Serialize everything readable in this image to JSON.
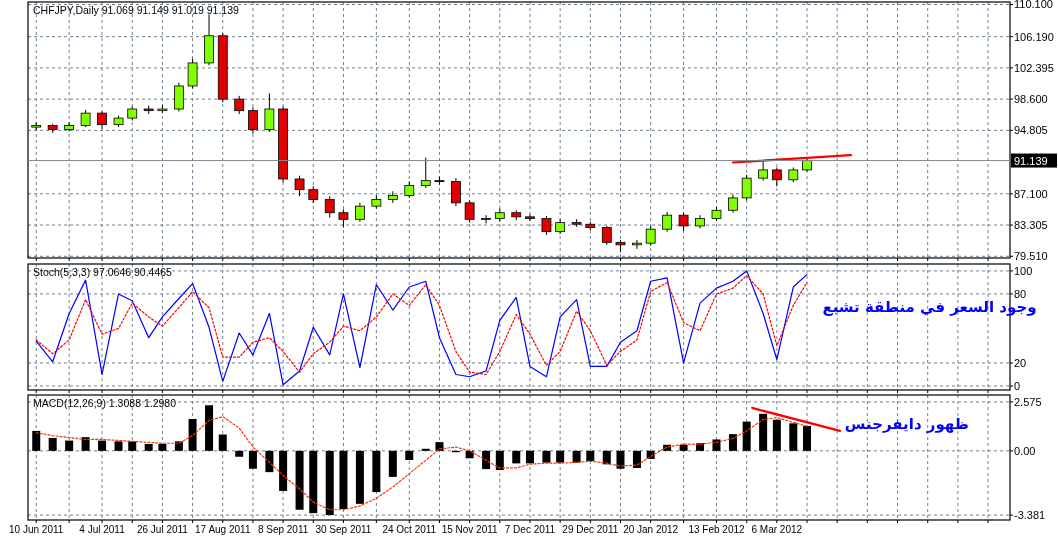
{
  "chart_data": [
    {
      "type": "candlestick",
      "title": "CHFJPY,Daily  91.069 91.149 91.019 91.139",
      "x": [
        "2011-06-10",
        "2011-06-16",
        "2011-06-22",
        "2011-06-28",
        "2011-07-04",
        "2011-07-10",
        "2011-07-15",
        "2011-07-21",
        "2011-07-26",
        "2011-08-01",
        "2011-08-06",
        "2011-08-12",
        "2011-08-17",
        "2011-08-23",
        "2011-08-28",
        "2011-09-03",
        "2011-09-08",
        "2011-09-14",
        "2011-09-19",
        "2011-09-25",
        "2011-09-30",
        "2011-10-06",
        "2011-10-12",
        "2011-10-18",
        "2011-10-24",
        "2011-10-30",
        "2011-11-04",
        "2011-11-10",
        "2011-11-15",
        "2011-11-21",
        "2011-11-26",
        "2011-12-02",
        "2011-12-07",
        "2011-12-13",
        "2011-12-18",
        "2011-12-24",
        "2011-12-29",
        "2012-01-04",
        "2012-01-09",
        "2012-01-15",
        "2012-01-20",
        "2012-01-26",
        "2012-02-01",
        "2012-02-07",
        "2012-02-13",
        "2012-02-19",
        "2012-02-24",
        "2012-03-01",
        "2012-03-06",
        "2012-03-12",
        "2012-03-17"
      ],
      "ohlc": [
        [
          95.2,
          95.8,
          94.8,
          95.4
        ],
        [
          95.4,
          95.6,
          94.5,
          94.9
        ],
        [
          94.9,
          95.8,
          94.7,
          95.4
        ],
        [
          95.4,
          97.3,
          95.2,
          96.9
        ],
        [
          96.9,
          97.1,
          95.0,
          95.5
        ],
        [
          95.5,
          96.6,
          95.2,
          96.3
        ],
        [
          96.3,
          97.7,
          96.0,
          97.4
        ],
        [
          97.4,
          97.8,
          96.8,
          97.2
        ],
        [
          97.2,
          97.9,
          96.9,
          97.4
        ],
        [
          97.4,
          100.6,
          97.1,
          100.2
        ],
        [
          100.2,
          103.5,
          99.9,
          103.0
        ],
        [
          103.0,
          108.9,
          102.7,
          106.3
        ],
        [
          106.3,
          106.6,
          98.2,
          98.6
        ],
        [
          98.6,
          99.0,
          96.8,
          97.2
        ],
        [
          97.2,
          97.6,
          94.4,
          94.9
        ],
        [
          94.9,
          99.3,
          94.6,
          97.4
        ],
        [
          97.4,
          97.7,
          88.5,
          88.9
        ],
        [
          88.9,
          89.3,
          86.8,
          87.6
        ],
        [
          87.6,
          88.0,
          86.0,
          86.4
        ],
        [
          86.4,
          86.8,
          84.2,
          84.8
        ],
        [
          84.8,
          85.2,
          83.0,
          84.0
        ],
        [
          84.0,
          86.0,
          83.7,
          85.6
        ],
        [
          85.6,
          86.9,
          85.3,
          86.4
        ],
        [
          86.4,
          87.4,
          86.0,
          86.9
        ],
        [
          86.9,
          88.6,
          86.6,
          88.1
        ],
        [
          88.1,
          91.5,
          87.8,
          88.7
        ],
        [
          88.7,
          89.2,
          88.2,
          88.6
        ],
        [
          88.6,
          89.0,
          85.6,
          86.0
        ],
        [
          86.0,
          86.3,
          83.6,
          84.0
        ],
        [
          84.0,
          84.5,
          83.5,
          84.1
        ],
        [
          84.1,
          85.3,
          83.7,
          84.8
        ],
        [
          84.8,
          85.1,
          83.9,
          84.3
        ],
        [
          84.3,
          84.6,
          83.8,
          84.1
        ],
        [
          84.1,
          84.4,
          82.1,
          82.5
        ],
        [
          82.5,
          84.0,
          82.2,
          83.6
        ],
        [
          83.6,
          84.0,
          83.1,
          83.4
        ],
        [
          83.4,
          83.7,
          82.7,
          83.0
        ],
        [
          83.0,
          83.2,
          80.9,
          81.2
        ],
        [
          81.2,
          81.5,
          80.0,
          80.9
        ],
        [
          80.9,
          81.5,
          80.4,
          81.1
        ],
        [
          81.1,
          83.2,
          80.8,
          82.8
        ],
        [
          82.8,
          84.9,
          82.5,
          84.5
        ],
        [
          84.5,
          84.8,
          82.6,
          83.2
        ],
        [
          83.2,
          84.5,
          82.9,
          84.1
        ],
        [
          84.1,
          85.5,
          83.8,
          85.1
        ],
        [
          85.1,
          87.0,
          84.8,
          86.6
        ],
        [
          86.6,
          89.4,
          86.3,
          89.0
        ],
        [
          89.0,
          91.1,
          88.7,
          90.0
        ],
        [
          90.0,
          90.3,
          88.0,
          88.8
        ],
        [
          88.8,
          90.3,
          88.5,
          90.0
        ],
        [
          90.0,
          91.3,
          89.8,
          91.139
        ]
      ],
      "colors": [
        "#80ff00",
        "#e00000",
        "#80ff00",
        "#80ff00",
        "#e00000",
        "#80ff00",
        "#80ff00",
        "#e00000",
        "#80ff00",
        "#80ff00",
        "#80ff00",
        "#80ff00",
        "#e00000",
        "#e00000",
        "#e00000",
        "#80ff00",
        "#e00000",
        "#e00000",
        "#e00000",
        "#e00000",
        "#e00000",
        "#80ff00",
        "#80ff00",
        "#80ff00",
        "#80ff00",
        "#80ff00",
        "#e00000",
        "#e00000",
        "#e00000",
        "#80ff00",
        "#80ff00",
        "#e00000",
        "#e00000",
        "#e00000",
        "#80ff00",
        "#e00000",
        "#e00000",
        "#e00000",
        "#e00000",
        "#80ff00",
        "#80ff00",
        "#80ff00",
        "#e00000",
        "#80ff00",
        "#80ff00",
        "#80ff00",
        "#80ff00",
        "#80ff00",
        "#e00000",
        "#80ff00",
        "#80ff00"
      ],
      "series": [
        {
          "type": "line",
          "x": [
            "2012-02-19",
            "2012-04-02"
          ],
          "values": [
            90.9,
            91.8
          ],
          "color": "#ff0000"
        }
      ],
      "ref_lines": [
        {
          "axis": "y",
          "value": 91.139,
          "label": "91.139",
          "color": "#808890"
        }
      ],
      "xlim": [
        "2011-06-07",
        "2012-05-30"
      ],
      "ylim": [
        79.3,
        110.4
      ],
      "xticks": [
        {
          "value": "2011-06-10",
          "label": null
        },
        {
          "value": "2011-06-22",
          "label": null
        },
        {
          "value": "2011-07-04",
          "label": null
        },
        {
          "value": "2011-07-15",
          "label": null
        },
        {
          "value": "2011-07-26",
          "label": null
        },
        {
          "value": "2011-08-06",
          "label": null
        },
        {
          "value": "2011-08-17",
          "label": null
        },
        {
          "value": "2011-08-28",
          "label": null
        },
        {
          "value": "2011-09-08",
          "label": null
        },
        {
          "value": "2011-09-19",
          "label": null
        },
        {
          "value": "2011-09-30",
          "label": null
        },
        {
          "value": "2011-10-12",
          "label": null
        },
        {
          "value": "2011-10-24",
          "label": null
        },
        {
          "value": "2011-11-04",
          "label": null
        },
        {
          "value": "2011-11-15",
          "label": null
        },
        {
          "value": "2011-11-26",
          "label": null
        },
        {
          "value": "2011-12-07",
          "label": null
        },
        {
          "value": "2011-12-18",
          "label": null
        },
        {
          "value": "2011-12-29",
          "label": null
        },
        {
          "value": "2012-01-09",
          "label": null
        },
        {
          "value": "2012-01-20",
          "label": null
        },
        {
          "value": "2012-02-01",
          "label": null
        },
        {
          "value": "2012-02-13",
          "label": null
        },
        {
          "value": "2012-02-24",
          "label": null
        },
        {
          "value": "2012-03-06",
          "label": null
        },
        {
          "value": "2012-03-17",
          "label": null
        },
        {
          "value": "2012-03-28",
          "label": null
        },
        {
          "value": "2012-04-08",
          "label": null
        },
        {
          "value": "2012-04-19",
          "label": null
        },
        {
          "value": "2012-04-30",
          "label": null
        },
        {
          "value": "2012-05-11",
          "label": null
        },
        {
          "value": "2012-05-22",
          "label": null
        }
      ],
      "yticks": [
        {
          "value": 110.1,
          "label": "110.100"
        },
        {
          "value": 106.19,
          "label": "106.190"
        },
        {
          "value": 102.395,
          "label": "102.395"
        },
        {
          "value": 98.6,
          "label": "98.600"
        },
        {
          "value": 94.805,
          "label": "94.805"
        },
        {
          "value": 87.1,
          "label": "87.100"
        },
        {
          "value": 83.305,
          "label": "83.305"
        },
        {
          "value": 79.51,
          "label": "79.510"
        }
      ],
      "grid": true,
      "tick_labels": "y"
    },
    {
      "type": "line",
      "title": "Stoch(5,3,3) 97.0646 90.4465",
      "x": [
        "2011-06-10",
        "2011-06-16",
        "2011-06-22",
        "2011-06-28",
        "2011-07-04",
        "2011-07-10",
        "2011-07-15",
        "2011-07-21",
        "2011-07-26",
        "2011-08-01",
        "2011-08-06",
        "2011-08-12",
        "2011-08-17",
        "2011-08-23",
        "2011-08-28",
        "2011-09-03",
        "2011-09-08",
        "2011-09-14",
        "2011-09-19",
        "2011-09-25",
        "2011-09-30",
        "2011-10-06",
        "2011-10-12",
        "2011-10-18",
        "2011-10-24",
        "2011-10-30",
        "2011-11-04",
        "2011-11-10",
        "2011-11-15",
        "2011-11-21",
        "2011-11-26",
        "2011-12-02",
        "2011-12-07",
        "2011-12-13",
        "2011-12-18",
        "2011-12-24",
        "2011-12-29",
        "2012-01-04",
        "2012-01-09",
        "2012-01-15",
        "2012-01-20",
        "2012-01-26",
        "2012-02-01",
        "2012-02-07",
        "2012-02-13",
        "2012-02-19",
        "2012-02-24",
        "2012-03-01",
        "2012-03-06",
        "2012-03-12",
        "2012-03-17"
      ],
      "series": [
        {
          "color": "#0000ff",
          "values": [
            39,
            21,
            63,
            92,
            10,
            80,
            74,
            42,
            60,
            76,
            89,
            51,
            4,
            46,
            27,
            63,
            1,
            13,
            51,
            27,
            80,
            16,
            88,
            66,
            86,
            91,
            42,
            10,
            8,
            13,
            57,
            77,
            17,
            8,
            60,
            75,
            17,
            17,
            38,
            48,
            91,
            94,
            20,
            72,
            85,
            91,
            100,
            63,
            23,
            86,
            97
          ]
        },
        {
          "color": "#ff0000",
          "line_style": "dotted",
          "values": [
            40,
            28,
            40,
            75,
            45,
            50,
            72,
            60,
            52,
            68,
            82,
            68,
            25,
            25,
            38,
            42,
            30,
            12,
            28,
            38,
            52,
            48,
            60,
            80,
            70,
            88,
            70,
            30,
            12,
            10,
            30,
            62,
            45,
            18,
            30,
            65,
            48,
            18,
            30,
            40,
            82,
            90,
            55,
            48,
            80,
            85,
            96,
            80,
            35,
            70,
            90
          ]
        }
      ],
      "annotations": [
        "وجود السعر في منطقة تشبع"
      ],
      "xlim": [
        "2011-06-07",
        "2012-05-30"
      ],
      "ylim": [
        -3.5,
        106
      ],
      "xticks": [
        {
          "value": "2011-06-10",
          "label": null
        },
        {
          "value": "2011-06-22",
          "label": null
        },
        {
          "value": "2011-07-04",
          "label": null
        },
        {
          "value": "2011-07-15",
          "label": null
        },
        {
          "value": "2011-07-26",
          "label": null
        },
        {
          "value": "2011-08-06",
          "label": null
        },
        {
          "value": "2011-08-17",
          "label": null
        },
        {
          "value": "2011-08-28",
          "label": null
        },
        {
          "value": "2011-09-08",
          "label": null
        },
        {
          "value": "2011-09-19",
          "label": null
        },
        {
          "value": "2011-09-30",
          "label": null
        },
        {
          "value": "2011-10-12",
          "label": null
        },
        {
          "value": "2011-10-24",
          "label": null
        },
        {
          "value": "2011-11-04",
          "label": null
        },
        {
          "value": "2011-11-15",
          "label": null
        },
        {
          "value": "2011-11-26",
          "label": null
        },
        {
          "value": "2011-12-07",
          "label": null
        },
        {
          "value": "2011-12-18",
          "label": null
        },
        {
          "value": "2011-12-29",
          "label": null
        },
        {
          "value": "2012-01-09",
          "label": null
        },
        {
          "value": "2012-01-20",
          "label": null
        },
        {
          "value": "2012-02-01",
          "label": null
        },
        {
          "value": "2012-02-13",
          "label": null
        },
        {
          "value": "2012-02-24",
          "label": null
        },
        {
          "value": "2012-03-06",
          "label": null
        },
        {
          "value": "2012-03-17",
          "label": null
        },
        {
          "value": "2012-03-28",
          "label": null
        },
        {
          "value": "2012-04-08",
          "label": null
        },
        {
          "value": "2012-04-19",
          "label": null
        },
        {
          "value": "2012-04-30",
          "label": null
        },
        {
          "value": "2012-05-11",
          "label": null
        },
        {
          "value": "2012-05-22",
          "label": null
        }
      ],
      "yticks": [
        0,
        20,
        80,
        100
      ],
      "grid": true,
      "tick_labels": "y"
    },
    {
      "type": "bar",
      "title": "MACD(12,26,9) 1.3088 1.2980",
      "x": [
        "2011-06-10",
        "2011-06-16",
        "2011-06-22",
        "2011-06-28",
        "2011-07-04",
        "2011-07-10",
        "2011-07-15",
        "2011-07-21",
        "2011-07-26",
        "2011-08-01",
        "2011-08-06",
        "2011-08-12",
        "2011-08-17",
        "2011-08-23",
        "2011-08-28",
        "2011-09-03",
        "2011-09-08",
        "2011-09-14",
        "2011-09-19",
        "2011-09-25",
        "2011-09-30",
        "2011-10-06",
        "2011-10-12",
        "2011-10-18",
        "2011-10-24",
        "2011-10-30",
        "2011-11-04",
        "2011-11-10",
        "2011-11-15",
        "2011-11-21",
        "2011-11-26",
        "2011-12-02",
        "2011-12-07",
        "2011-12-13",
        "2011-12-18",
        "2011-12-24",
        "2011-12-29",
        "2012-01-04",
        "2012-01-09",
        "2012-01-15",
        "2012-01-20",
        "2012-01-26",
        "2012-02-01",
        "2012-02-07",
        "2012-02-13",
        "2012-02-19",
        "2012-02-24",
        "2012-03-01",
        "2012-03-06",
        "2012-03-12",
        "2012-03-17"
      ],
      "series": [
        {
          "color": "#000000",
          "values": [
            1.05,
            0.68,
            0.54,
            0.72,
            0.54,
            0.5,
            0.5,
            0.36,
            0.36,
            0.5,
            1.68,
            2.4,
            0.86,
            -0.31,
            -0.94,
            -1.12,
            -2.11,
            -3.1,
            -3.28,
            -3.38,
            -3.06,
            -2.79,
            -2.17,
            -1.37,
            -0.48,
            0.11,
            0.46,
            -0.07,
            -0.39,
            -0.96,
            -1.01,
            -0.66,
            -0.66,
            -0.62,
            -0.62,
            -0.62,
            -0.53,
            -0.71,
            -0.94,
            -0.9,
            -0.43,
            0.32,
            0.32,
            0.41,
            0.6,
            0.88,
            1.54,
            1.95,
            1.64,
            1.45,
            1.31
          ]
        },
        {
          "type": "line",
          "color": "#ff3300",
          "line_style": "dotted",
          "values": [
            0.95,
            0.8,
            0.7,
            0.6,
            0.6,
            0.55,
            0.5,
            0.45,
            0.4,
            0.4,
            0.8,
            1.6,
            1.8,
            1.2,
            0.2,
            -0.6,
            -1.3,
            -2.0,
            -2.7,
            -3.1,
            -3.1,
            -2.9,
            -2.5,
            -1.9,
            -1.2,
            -0.5,
            0.1,
            0.2,
            0.0,
            -0.5,
            -0.9,
            -0.9,
            -0.7,
            -0.65,
            -0.65,
            -0.6,
            -0.55,
            -0.65,
            -0.8,
            -0.75,
            -0.3,
            0.2,
            0.35,
            0.35,
            0.45,
            0.65,
            1.05,
            1.65,
            1.75,
            1.5,
            1.3
          ]
        },
        {
          "type": "line",
          "x": [
            "2012-02-26",
            "2012-03-29"
          ],
          "values": [
            2.26,
            1.05
          ],
          "color": "#ff0000"
        }
      ],
      "annotations": [
        "ظهور دايفرجنس"
      ],
      "xlim": [
        "2011-06-07",
        "2012-05-30"
      ],
      "ylim": [
        -3.64,
        2.94
      ],
      "xticks": [
        {
          "value": "2011-06-10",
          "label": "10 Jun 2011"
        },
        {
          "value": "2011-06-22",
          "label": null
        },
        {
          "value": "2011-07-04",
          "label": "4 Jul 2011"
        },
        {
          "value": "2011-07-15",
          "label": null
        },
        {
          "value": "2011-07-26",
          "label": "26 Jul 2011"
        },
        {
          "value": "2011-08-06",
          "label": null
        },
        {
          "value": "2011-08-17",
          "label": "17 Aug 2011"
        },
        {
          "value": "2011-08-28",
          "label": null
        },
        {
          "value": "2011-09-08",
          "label": "8 Sep 2011"
        },
        {
          "value": "2011-09-19",
          "label": null
        },
        {
          "value": "2011-09-30",
          "label": "30 Sep 2011"
        },
        {
          "value": "2011-10-12",
          "label": null
        },
        {
          "value": "2011-10-24",
          "label": "24 Oct 2011"
        },
        {
          "value": "2011-11-04",
          "label": null
        },
        {
          "value": "2011-11-15",
          "label": "15 Nov 2011"
        },
        {
          "value": "2011-11-26",
          "label": null
        },
        {
          "value": "2011-12-07",
          "label": "7 Dec 2011"
        },
        {
          "value": "2011-12-18",
          "label": null
        },
        {
          "value": "2011-12-29",
          "label": "29 Dec 2011"
        },
        {
          "value": "2012-01-09",
          "label": null
        },
        {
          "value": "2012-01-20",
          "label": "20 Jan 2012"
        },
        {
          "value": "2012-02-01",
          "label": null
        },
        {
          "value": "2012-02-13",
          "label": "13 Feb 2012"
        },
        {
          "value": "2012-02-24",
          "label": null
        },
        {
          "value": "2012-03-06",
          "label": "6 Mar 2012"
        },
        {
          "value": "2012-03-17",
          "label": null
        },
        {
          "value": "2012-03-28",
          "label": null
        },
        {
          "value": "2012-04-08",
          "label": null
        },
        {
          "value": "2012-04-19",
          "label": null
        },
        {
          "value": "2012-04-30",
          "label": null
        },
        {
          "value": "2012-05-11",
          "label": null
        },
        {
          "value": "2012-05-22",
          "label": null
        }
      ],
      "yticks": [
        {
          "value": 2.575,
          "label": "2.575"
        },
        {
          "value": 0,
          "label": "0.00"
        },
        {
          "value": -3.381,
          "label": "-3.381"
        }
      ],
      "grid": true
    }
  ]
}
